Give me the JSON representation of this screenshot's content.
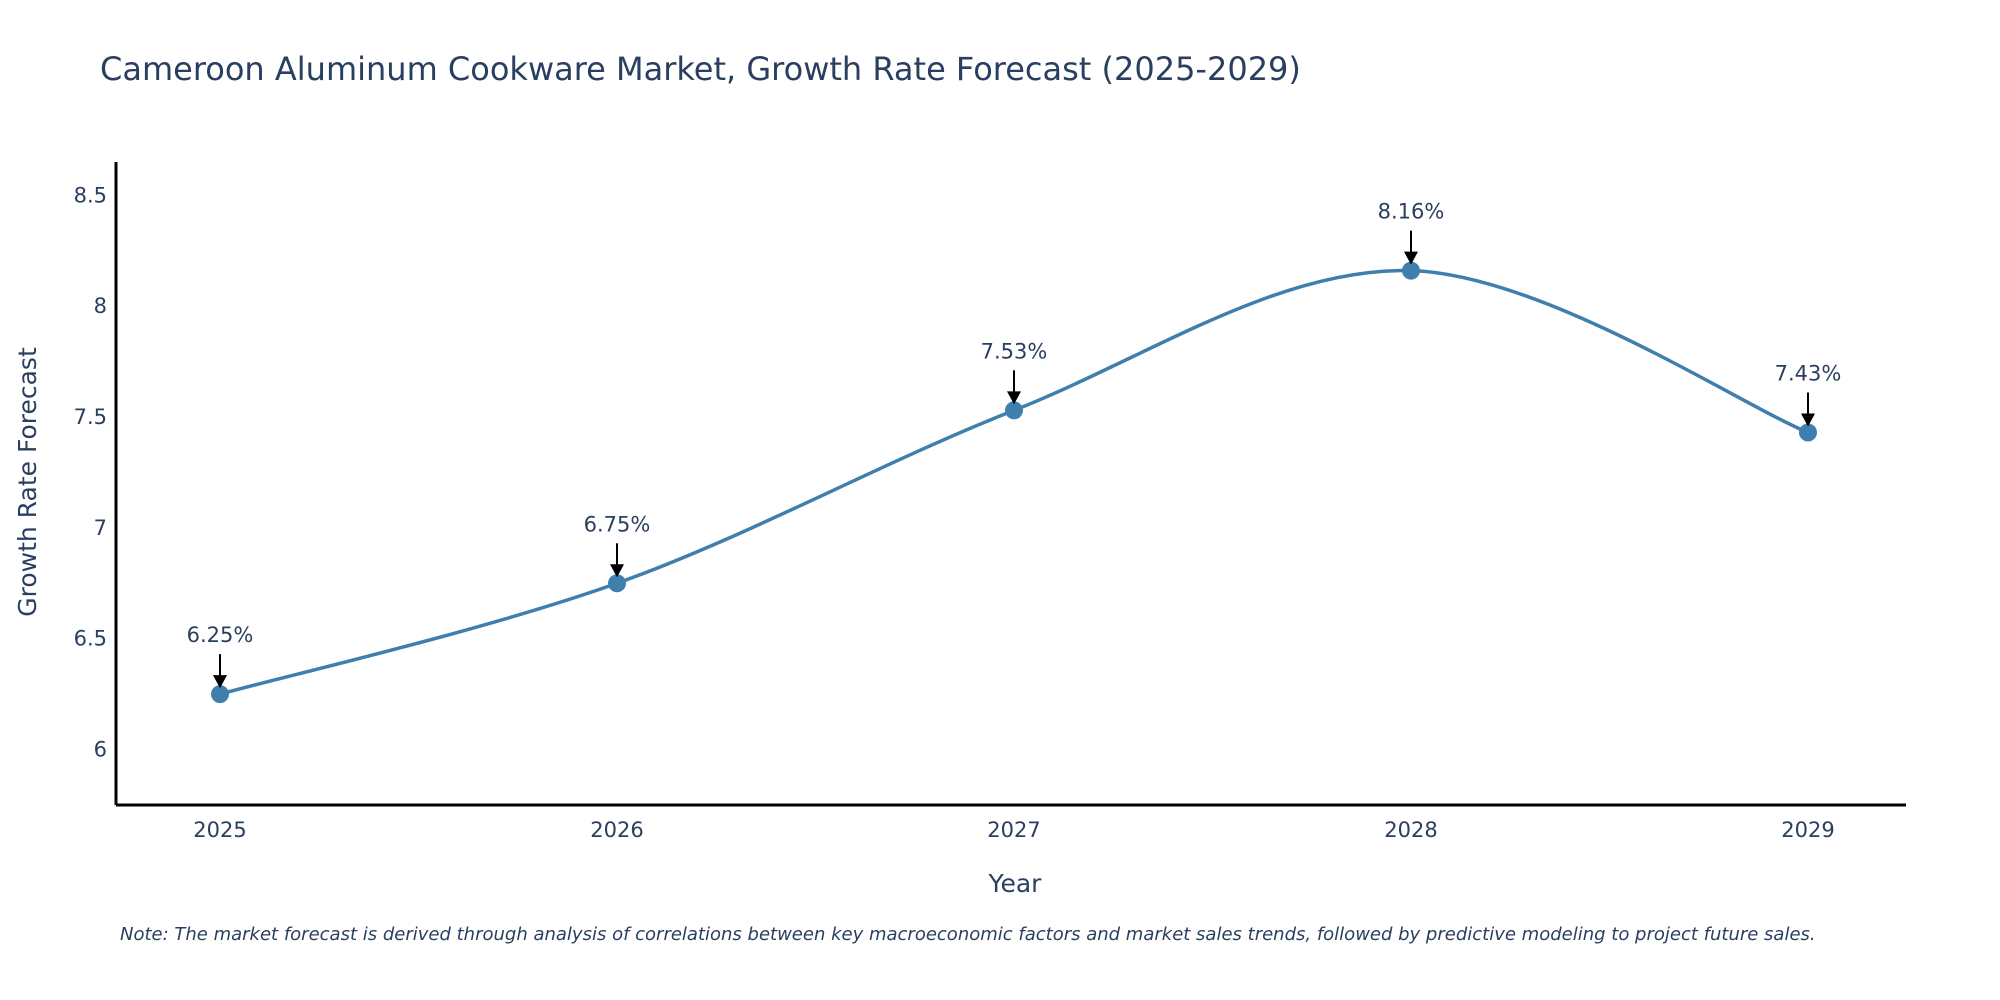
{
  "chart_data": {
    "type": "line",
    "title": "Cameroon Aluminum Cookware Market, Growth Rate Forecast (2025-2029)",
    "xlabel": "Year",
    "ylabel": "Growth Rate Forecast",
    "categories": [
      "2025",
      "2026",
      "2027",
      "2028",
      "2029"
    ],
    "series": [
      {
        "name": "Growth Rate Forecast",
        "values": [
          6.25,
          6.75,
          7.53,
          8.16,
          7.43
        ],
        "labels": [
          "6.25%",
          "6.75%",
          "7.53%",
          "8.16%",
          "7.43%"
        ]
      }
    ],
    "ylim": [
      5.75,
      8.65
    ],
    "yticks": [
      6,
      6.5,
      7,
      7.5,
      8,
      8.5
    ],
    "ytick_labels": [
      "6",
      "6.5",
      "7",
      "7.5",
      "8",
      "8.5"
    ],
    "grid": false,
    "line_color": "#3f7fad",
    "marker_color": "#3f7fad",
    "note": "Note: The market forecast is derived through analysis of correlations between key macroeconomic factors and market sales trends, followed by predictive modeling to project future sales."
  }
}
